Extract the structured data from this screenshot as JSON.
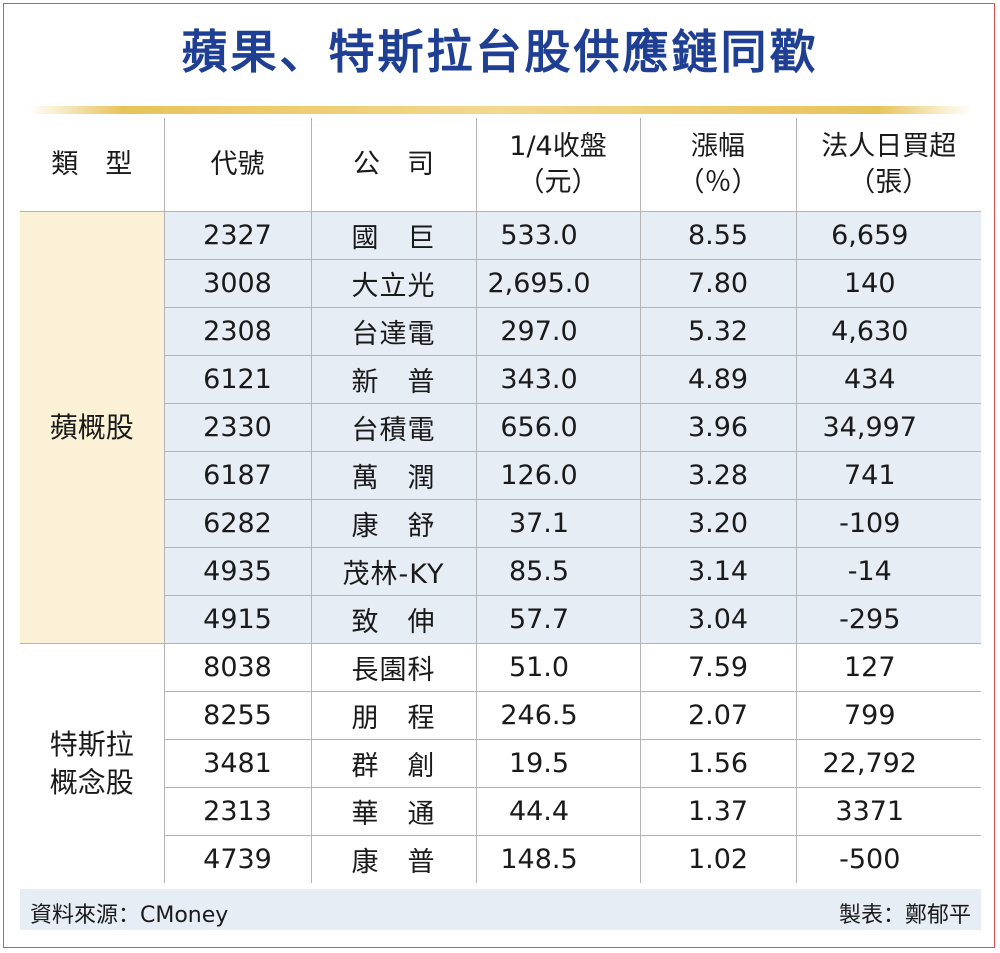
{
  "title": "蘋果、特斯拉台股供應鏈同歡",
  "headers": {
    "type": "類　型",
    "code": "代號",
    "company": "公　司",
    "close_1": "1/4收盤",
    "close_2": "（元）",
    "change_1": "漲幅",
    "change_2": "（％）",
    "inst_1": "法人日買超",
    "inst_2": "（張）"
  },
  "groups": [
    {
      "label": "蘋概股",
      "rows": [
        {
          "code": "2327",
          "company": "國　巨",
          "close": "533.0",
          "change": "8.55",
          "inst": "6,659"
        },
        {
          "code": "3008",
          "company": "大立光",
          "close": "2,695.0",
          "change": "7.80",
          "inst": "140"
        },
        {
          "code": "2308",
          "company": "台達電",
          "close": "297.0",
          "change": "5.32",
          "inst": "4,630"
        },
        {
          "code": "6121",
          "company": "新　普",
          "close": "343.0",
          "change": "4.89",
          "inst": "434"
        },
        {
          "code": "2330",
          "company": "台積電",
          "close": "656.0",
          "change": "3.96",
          "inst": "34,997"
        },
        {
          "code": "6187",
          "company": "萬　潤",
          "close": "126.0",
          "change": "3.28",
          "inst": "741"
        },
        {
          "code": "6282",
          "company": "康　舒",
          "close": "37.1",
          "change": "3.20",
          "inst": "-109"
        },
        {
          "code": "4935",
          "company": "茂林-KY",
          "close": "85.5",
          "change": "3.14",
          "inst": "-14"
        },
        {
          "code": "4915",
          "company": "致　伸",
          "close": "57.7",
          "change": "3.04",
          "inst": "-295"
        }
      ]
    },
    {
      "label_1": "特斯拉",
      "label_2": "概念股",
      "rows": [
        {
          "code": "8038",
          "company": "長園科",
          "close": "51.0",
          "change": "7.59",
          "inst": "127"
        },
        {
          "code": "8255",
          "company": "朋　程",
          "close": "246.5",
          "change": "2.07",
          "inst": "799"
        },
        {
          "code": "3481",
          "company": "群　創",
          "close": "19.5",
          "change": "1.56",
          "inst": "22,792"
        },
        {
          "code": "2313",
          "company": "華　通",
          "close": "44.4",
          "change": "1.37",
          "inst": "3371"
        },
        {
          "code": "4739",
          "company": "康　普",
          "close": "148.5",
          "change": "1.02",
          "inst": "-500"
        }
      ]
    }
  ],
  "footer": {
    "source": "資料來源：CMoney",
    "maker": "製表：鄭郁平"
  },
  "colors": {
    "title": "#1f3f95",
    "frame": "#e05050",
    "row_tint": "#e6edf5",
    "type_tint": "#fbf1d6",
    "gold": "#e8c35a"
  }
}
